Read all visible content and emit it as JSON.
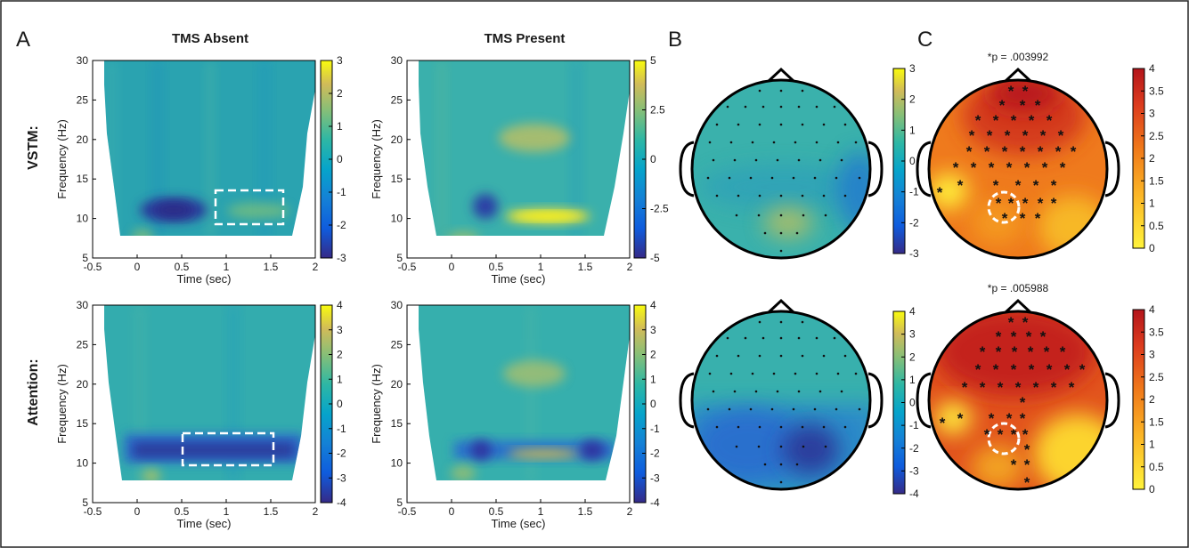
{
  "figure": {
    "panel_letters": [
      "A",
      "B",
      "C"
    ],
    "column_titles": [
      "TMS Absent",
      "TMS Present"
    ],
    "row_labels": [
      "VSTM:",
      "Attention:"
    ],
    "significance_labels": [
      "*p = .003992",
      "*p = .005988"
    ]
  },
  "chart_data": [
    {
      "type": "heatmap",
      "panel": "A",
      "row": "VSTM:",
      "title": "TMS Absent",
      "xlabel": "Time (sec)",
      "ylabel": "Frequency (Hz)",
      "xlim": [
        -0.5,
        2
      ],
      "ylim": [
        5,
        30
      ],
      "xticks": [
        "-0.5",
        "0",
        "0.5",
        "1",
        "1.5",
        "2"
      ],
      "yticks": [
        "5",
        "10",
        "15",
        "20",
        "25",
        "30"
      ],
      "clim": [
        -3,
        3
      ],
      "colorbar_ticks": [
        "3",
        "2",
        "1",
        "0",
        "-1",
        "-2",
        "-3"
      ],
      "colormap": "parula",
      "blobs": [
        {
          "time": 0.25,
          "freq": 11,
          "value": -3
        },
        {
          "time": 1.25,
          "freq": 11,
          "value": 0.8
        },
        {
          "time": 0.05,
          "freq": 7,
          "value": 0.6
        }
      ],
      "highlight_box": {
        "time": [
          0.9,
          1.65
        ],
        "freq": [
          9.5,
          13.5
        ]
      }
    },
    {
      "type": "heatmap",
      "panel": "A",
      "row": "VSTM:",
      "title": "TMS Present",
      "xlabel": "Time (sec)",
      "ylabel": "Frequency (Hz)",
      "xlim": [
        -0.5,
        2
      ],
      "ylim": [
        5,
        30
      ],
      "xticks": [
        "-0.5",
        "0",
        "0.5",
        "1",
        "1.5",
        "2"
      ],
      "yticks": [
        "5",
        "10",
        "15",
        "20",
        "25",
        "30"
      ],
      "clim": [
        -5,
        5
      ],
      "colorbar_ticks": [
        "5",
        "2.5",
        "0",
        "-2.5",
        "-5"
      ],
      "colormap": "parula",
      "blobs": [
        {
          "time": 0.3,
          "freq": 11,
          "value": -4
        },
        {
          "time": 1.1,
          "freq": 10.5,
          "value": 5
        },
        {
          "time": 1.0,
          "freq": 21,
          "value": 2
        }
      ]
    },
    {
      "type": "heatmap",
      "panel": "A",
      "row": "Attention:",
      "title": "",
      "xlabel": "Time (sec)",
      "ylabel": "Frequency (Hz)",
      "xlim": [
        -0.5,
        2
      ],
      "ylim": [
        5,
        30
      ],
      "xticks": [
        "-0.5",
        "0",
        "0.5",
        "1",
        "1.5",
        "2"
      ],
      "yticks": [
        "5",
        "10",
        "15",
        "20",
        "25",
        "30"
      ],
      "clim": [
        -4,
        4
      ],
      "colorbar_ticks": [
        "4",
        "3",
        "2",
        "1",
        "0",
        "-1",
        "-2",
        "-3",
        "-4"
      ],
      "colormap": "parula",
      "blobs": [
        {
          "time": 1.0,
          "freq": 11.5,
          "value": -3.5
        },
        {
          "time": 0.05,
          "freq": 7.5,
          "value": 1
        }
      ],
      "highlight_box": {
        "time": [
          0.5,
          1.5
        ],
        "freq": [
          10,
          14
        ]
      }
    },
    {
      "type": "heatmap",
      "panel": "A",
      "row": "Attention:",
      "title": "",
      "xlabel": "Time (sec)",
      "ylabel": "Frequency (Hz)",
      "xlim": [
        -0.5,
        2
      ],
      "ylim": [
        5,
        30
      ],
      "xticks": [
        "-0.5",
        "0",
        "0.5",
        "1",
        "1.5",
        "2"
      ],
      "yticks": [
        "5",
        "10",
        "15",
        "20",
        "25",
        "30"
      ],
      "clim": [
        -4,
        4
      ],
      "colorbar_ticks": [
        "4",
        "3",
        "2",
        "1",
        "0",
        "-1",
        "-2",
        "-3",
        "-4"
      ],
      "colormap": "parula",
      "blobs": [
        {
          "time": 0.3,
          "freq": 11.5,
          "value": -3
        },
        {
          "time": 1.6,
          "freq": 11.5,
          "value": -3
        },
        {
          "time": 1.0,
          "freq": 10.5,
          "value": 1.5
        },
        {
          "time": 1.0,
          "freq": 21,
          "value": 1.5
        }
      ]
    },
    {
      "type": "heatmap",
      "panel": "B",
      "row": "VSTM:",
      "title": "",
      "chart": "scalp topography",
      "clim": [
        -3,
        3
      ],
      "colorbar_ticks": [
        "3",
        "2",
        "1",
        "0",
        "-1",
        "-2",
        "-3"
      ],
      "colormap": "parula"
    },
    {
      "type": "heatmap",
      "panel": "B",
      "row": "Attention:",
      "title": "",
      "chart": "scalp topography",
      "clim": [
        -4,
        4
      ],
      "colorbar_ticks": [
        "4",
        "3",
        "2",
        "1",
        "0",
        "-1",
        "-2",
        "-3",
        "-4"
      ],
      "colormap": "parula"
    },
    {
      "type": "heatmap",
      "panel": "C",
      "row": "VSTM:",
      "title": "*p = .003992",
      "chart": "scalp topography",
      "clim": [
        0,
        4
      ],
      "colorbar_ticks": [
        "4",
        "3.5",
        "3",
        "2.5",
        "2",
        "1.5",
        "1",
        "0.5",
        "0"
      ],
      "colormap": "hot (yellow to dark red)"
    },
    {
      "type": "heatmap",
      "panel": "C",
      "row": "Attention:",
      "title": "*p = .005988",
      "chart": "scalp topography",
      "clim": [
        0,
        4
      ],
      "colorbar_ticks": [
        "4",
        "3.5",
        "3",
        "2.5",
        "2",
        "1.5",
        "1",
        "0.5",
        "0"
      ],
      "colormap": "hot (yellow to dark red)"
    }
  ]
}
